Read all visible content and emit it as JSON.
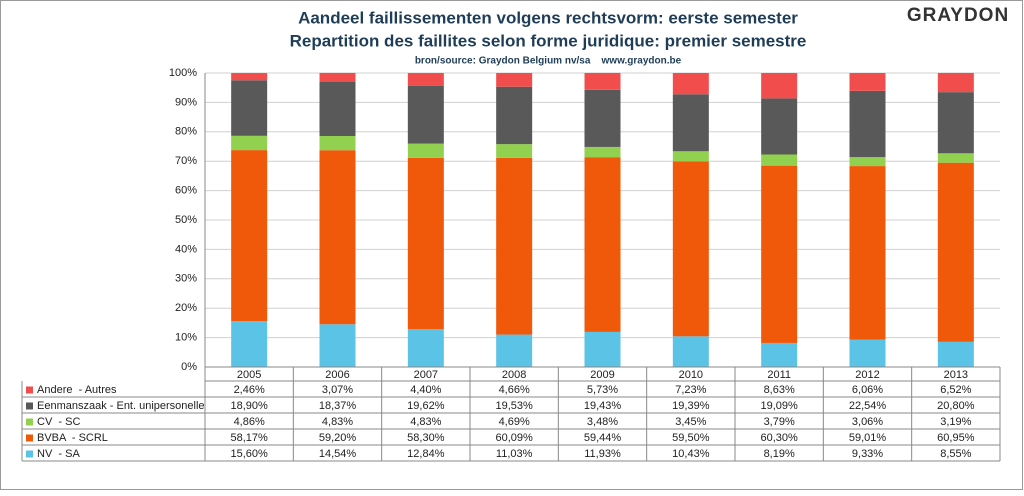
{
  "chart_data": {
    "type": "stacked_bar",
    "title": "Aandeel faillissementen volgens rechtsvorm: eerste semester",
    "subtitle": "Repartition des faillites selon forme juridique: premier semestre",
    "source": "bron/source: Graydon Belgium nv/sa    www.graydon.be",
    "logo": "GRAYDON",
    "categories": [
      "2005",
      "2006",
      "2007",
      "2008",
      "2009",
      "2010",
      "2011",
      "2012",
      "2013"
    ],
    "series": [
      {
        "name": "NV  - SA",
        "color": "#5bc3e6",
        "values": [
          15.6,
          14.54,
          12.84,
          11.03,
          11.93,
          10.43,
          8.19,
          9.33,
          8.55
        ],
        "value_labels": [
          "15,60%",
          "14,54%",
          "12,84%",
          "11,03%",
          "11,93%",
          "10,43%",
          "8,19%",
          "9,33%",
          "8,55%"
        ]
      },
      {
        "name": "BVBA  - SCRL",
        "color": "#f0580a",
        "values": [
          58.17,
          59.2,
          58.3,
          60.09,
          59.44,
          59.5,
          60.3,
          59.01,
          60.95
        ],
        "value_labels": [
          "58,17%",
          "59,20%",
          "58,30%",
          "60,09%",
          "59,44%",
          "59,50%",
          "60,30%",
          "59,01%",
          "60,95%"
        ]
      },
      {
        "name": "CV  - SC",
        "color": "#92d050",
        "values": [
          4.86,
          4.83,
          4.83,
          4.69,
          3.48,
          3.45,
          3.79,
          3.06,
          3.19
        ],
        "value_labels": [
          "4,86%",
          "4,83%",
          "4,83%",
          "4,69%",
          "3,48%",
          "3,45%",
          "3,79%",
          "3,06%",
          "3,19%"
        ]
      },
      {
        "name": "Eenmanszaak - Ent. unipersonelle",
        "color": "#595959",
        "values": [
          18.9,
          18.37,
          19.62,
          19.53,
          19.43,
          19.39,
          19.09,
          22.54,
          20.8
        ],
        "value_labels": [
          "18,90%",
          "18,37%",
          "19,62%",
          "19,53%",
          "19,43%",
          "19,39%",
          "19,09%",
          "22,54%",
          "20,80%"
        ]
      },
      {
        "name": "Andere  - Autres",
        "color": "#f24d4d",
        "values": [
          2.46,
          3.07,
          4.4,
          4.66,
          5.73,
          7.23,
          8.63,
          6.06,
          6.52
        ],
        "value_labels": [
          "2,46%",
          "3,07%",
          "4,40%",
          "4,66%",
          "5,73%",
          "7,23%",
          "8,63%",
          "6,06%",
          "6,52%"
        ]
      }
    ],
    "ylim": [
      0,
      100
    ],
    "yticks": [
      {
        "value": 0,
        "label": "0%"
      },
      {
        "value": 10,
        "label": "10%"
      },
      {
        "value": 20,
        "label": "20%"
      },
      {
        "value": 30,
        "label": "30%"
      },
      {
        "value": 40,
        "label": "40%"
      },
      {
        "value": 50,
        "label": "50%"
      },
      {
        "value": 60,
        "label": "60%"
      },
      {
        "value": 70,
        "label": "70%"
      },
      {
        "value": 80,
        "label": "80%"
      },
      {
        "value": 90,
        "label": "90%"
      },
      {
        "value": 100,
        "label": "100%"
      }
    ],
    "grid": true
  }
}
